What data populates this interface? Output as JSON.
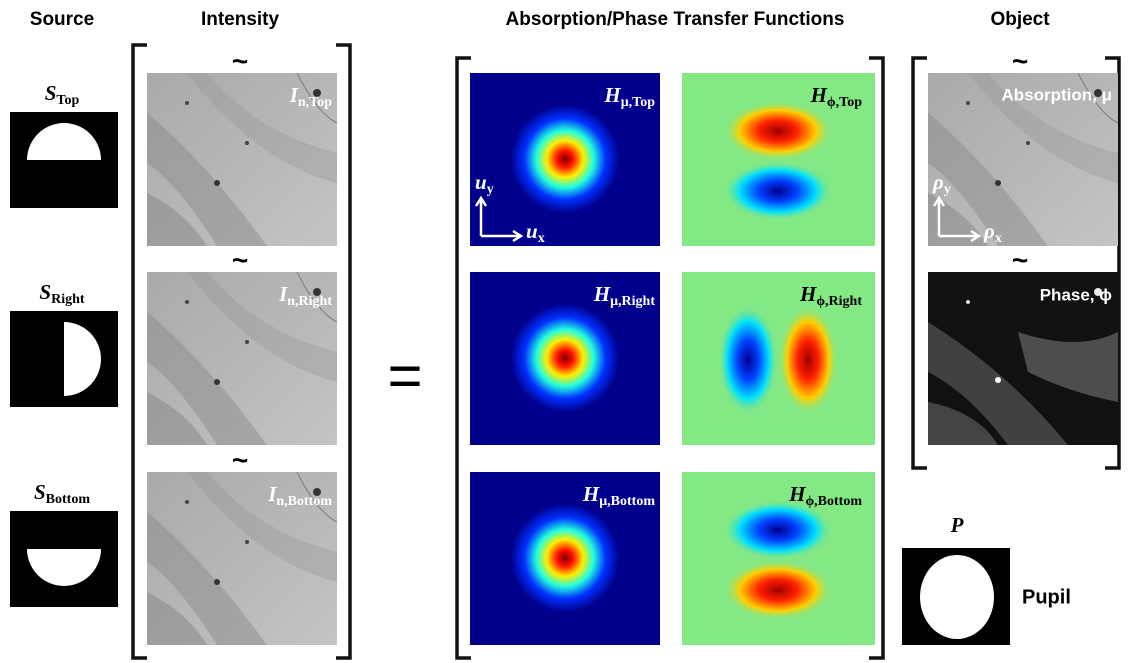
{
  "headers": {
    "source": "Source",
    "intensity": "Intensity",
    "transfer": "Absorption/Phase Transfer Functions",
    "object": "Object"
  },
  "sources": [
    {
      "symbol": "S",
      "subscript": "Top"
    },
    {
      "symbol": "S",
      "subscript": "Right"
    },
    {
      "symbol": "S",
      "subscript": "Bottom"
    }
  ],
  "intensities": [
    {
      "symbol": "I",
      "subscript": "n,Top"
    },
    {
      "symbol": "I",
      "subscript": "n,Right"
    },
    {
      "symbol": "I",
      "subscript": "n,Bottom"
    }
  ],
  "absorption_tf": [
    {
      "symbol": "H",
      "subscript": "μ,Top"
    },
    {
      "symbol": "H",
      "subscript": "μ,Right"
    },
    {
      "symbol": "H",
      "subscript": "μ,Bottom"
    }
  ],
  "phase_tf": [
    {
      "symbol": "H",
      "subscript": "ϕ,Top"
    },
    {
      "symbol": "H",
      "subscript": "ϕ,Right"
    },
    {
      "symbol": "H",
      "subscript": "ϕ,Bottom"
    }
  ],
  "frequency_axes": {
    "x": {
      "symbol": "u",
      "subscript": "x"
    },
    "y": {
      "symbol": "u",
      "subscript": "y"
    }
  },
  "object": {
    "absorption": "Absorption, μ",
    "phase": "Phase, ϕ",
    "axes": {
      "x": {
        "symbol": "ρ",
        "subscript": "x"
      },
      "y": {
        "symbol": "ρ",
        "subscript": "y"
      }
    }
  },
  "pupil": {
    "symbol": "P",
    "label": "Pupil"
  },
  "operators": {
    "equals": "=",
    "tilde": "~"
  }
}
